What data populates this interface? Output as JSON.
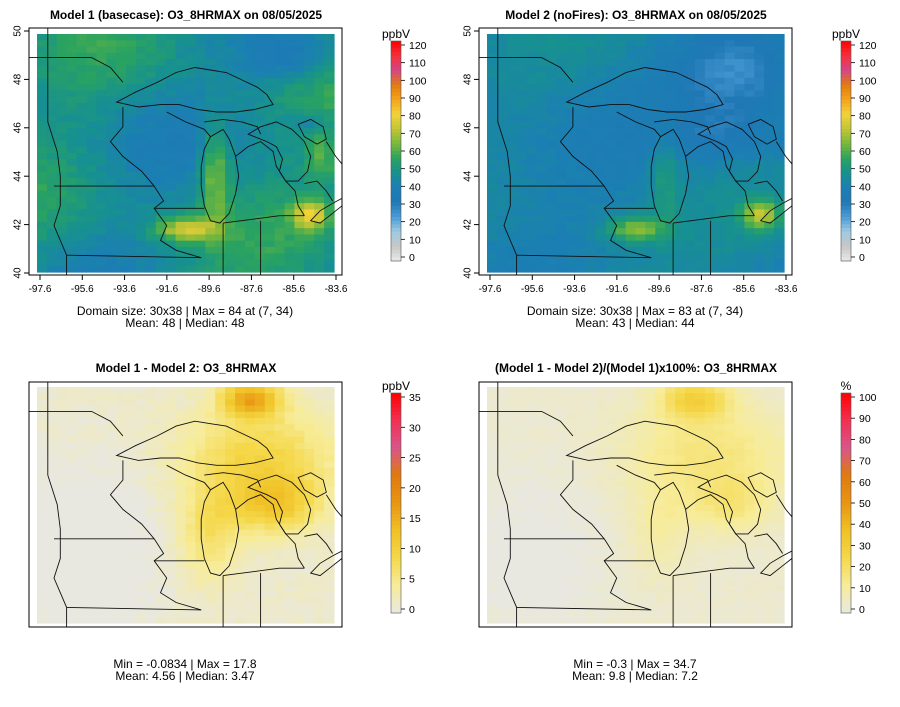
{
  "colors": {
    "conc_palette": [
      "#e8e8e8",
      "#c7c7c7",
      "#9ecae1",
      "#4a9bd6",
      "#1f78b4",
      "#1b7fb3",
      "#17918f",
      "#2aa360",
      "#79b83a",
      "#c2c536",
      "#f2d33a",
      "#f5a21d",
      "#e07b0e",
      "#d4458a",
      "#f5303a",
      "#ff0000"
    ],
    "diff_palette": [
      "#e8e8e0",
      "#f7ec9a",
      "#f5d84a",
      "#f0c126",
      "#e99513",
      "#df7a10",
      "#d9568a",
      "#f23052",
      "#ff0000"
    ],
    "background": "#ffffff"
  },
  "panels": [
    {
      "id": "p1",
      "title": "Model 1 (basecase): O3_8HRMAX on 08/05/2025",
      "type": "concentration",
      "pattern": "base",
      "legend_unit": "ppbV",
      "legend_ticks": [
        "0",
        "10",
        "20",
        "30",
        "40",
        "50",
        "60",
        "70",
        "80",
        "90",
        "100",
        "110",
        "120"
      ],
      "legend_max": 120,
      "x_ticks": [
        "-97.6",
        "-95.6",
        "-93.6",
        "-91.6",
        "-89.6",
        "-87.6",
        "-85.6",
        "-83.6"
      ],
      "y_ticks": [
        "40",
        "42",
        "44",
        "46",
        "48",
        "50"
      ],
      "stats_line1": "Domain size: 30x38 | Max = 84 at (7, 34)",
      "stats_line2": "Mean: 48 |  Median: 48"
    },
    {
      "id": "p2",
      "title": "Model 2 (noFires): O3_8HRMAX on 08/05/2025",
      "type": "concentration",
      "pattern": "nofires",
      "legend_unit": "ppbV",
      "legend_ticks": [
        "0",
        "10",
        "20",
        "30",
        "40",
        "50",
        "60",
        "70",
        "80",
        "90",
        "100",
        "110",
        "120"
      ],
      "legend_max": 120,
      "x_ticks": [
        "-97.6",
        "-95.6",
        "-93.6",
        "-91.6",
        "-89.6",
        "-87.6",
        "-85.6",
        "-83.6"
      ],
      "y_ticks": [
        "40",
        "42",
        "44",
        "46",
        "48",
        "50"
      ],
      "stats_line1": "Domain size: 30x38 | Max = 83 at (7, 34)",
      "stats_line2": "Mean: 43 |  Median: 44"
    },
    {
      "id": "p3",
      "title": "Model 1 - Model 2: O3_8HRMAX",
      "type": "difference",
      "pattern": "diff",
      "legend_unit": "ppbV",
      "legend_ticks": [
        "0",
        "5",
        "10",
        "15",
        "20",
        "25",
        "30",
        "35"
      ],
      "legend_max": 35,
      "stats_line1": "Min = -0.0834 | Max = 17.8",
      "stats_line2": "Mean: 4.56 |  Median: 3.47"
    },
    {
      "id": "p4",
      "title": "(Model 1 - Model 2)/(Model 1)x100%: O3_8HRMAX",
      "type": "difference",
      "pattern": "pct",
      "legend_unit": "%",
      "legend_ticks": [
        "0",
        "10",
        "20",
        "30",
        "40",
        "50",
        "60",
        "70",
        "80",
        "90",
        "100"
      ],
      "legend_max": 100,
      "stats_line1": "Min = -0.3 | Max = 34.7",
      "stats_line2": "Mean: 9.8 |  Median: 7.2"
    }
  ]
}
